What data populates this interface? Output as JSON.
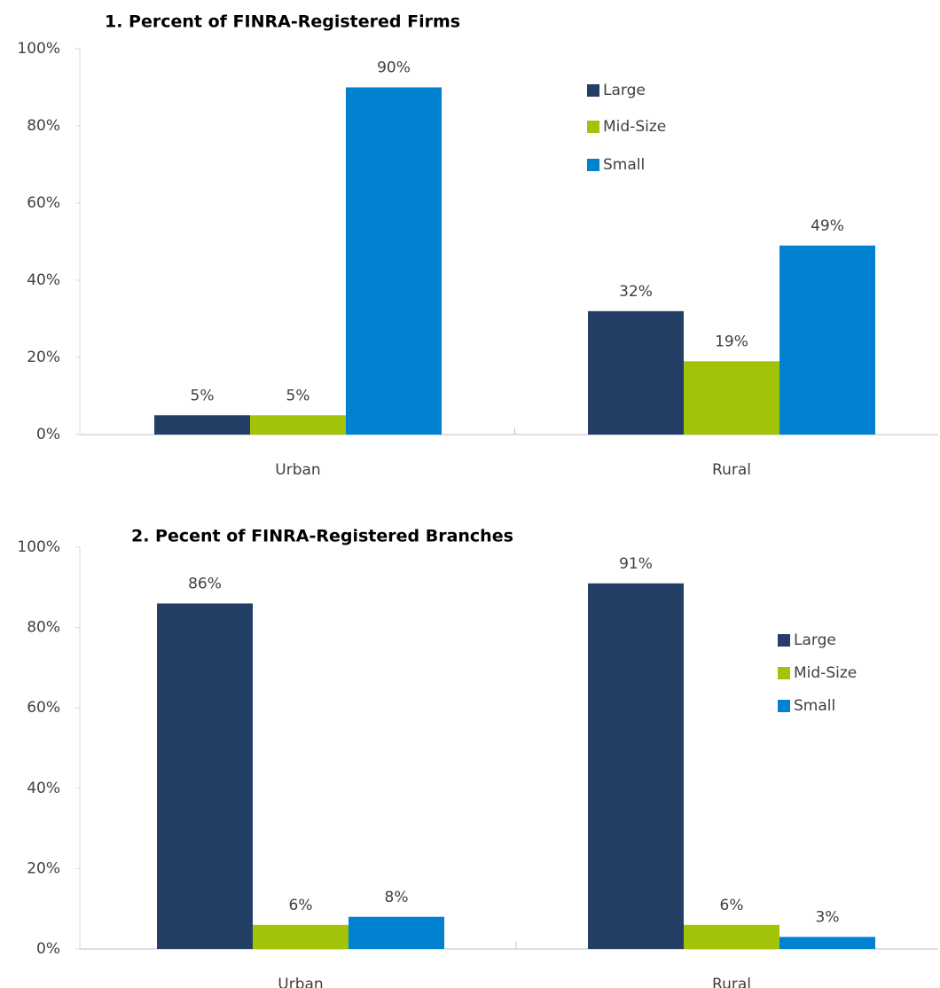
{
  "chart_data": [
    {
      "type": "bar",
      "title": "1. Percent of FINRA-Registered Firms",
      "categories": [
        "Urban",
        "Rural"
      ],
      "series": [
        {
          "name": "Large",
          "color": "#243f66",
          "values": [
            5,
            32
          ],
          "value_labels": [
            "5%",
            "32%"
          ]
        },
        {
          "name": "Mid-Size",
          "color": "#a2c408",
          "values": [
            5,
            19
          ],
          "value_labels": [
            "5%",
            "19%"
          ]
        },
        {
          "name": "Small",
          "color": "#0082d1",
          "values": [
            90,
            49
          ],
          "value_labels": [
            "90%",
            "49%"
          ]
        }
      ],
      "ylim": [
        0,
        100
      ],
      "yticks": [
        {
          "value": 0,
          "label": "0%"
        },
        {
          "value": 20,
          "label": "20%"
        },
        {
          "value": 40,
          "label": "40%"
        },
        {
          "value": 60,
          "label": "60%"
        },
        {
          "value": 80,
          "label": "80%"
        },
        {
          "value": 100,
          "label": "100%"
        }
      ],
      "grid": false
    },
    {
      "type": "bar",
      "title": "2. Pecent of FINRA-Registered Branches",
      "categories": [
        "Urban",
        "Rural"
      ],
      "series": [
        {
          "name": "Large",
          "color": "#243f66",
          "values": [
            86,
            91
          ],
          "value_labels": [
            "86%",
            "91%"
          ]
        },
        {
          "name": "Mid-Size",
          "color": "#a2c408",
          "values": [
            6,
            6
          ],
          "value_labels": [
            "6%",
            "6%"
          ]
        },
        {
          "name": "Small",
          "color": "#0082d1",
          "values": [
            8,
            3
          ],
          "value_labels": [
            "8%",
            "3%"
          ]
        }
      ],
      "ylim": [
        0,
        100
      ],
      "yticks": [
        {
          "value": 0,
          "label": "0%"
        },
        {
          "value": 20,
          "label": "20%"
        },
        {
          "value": 40,
          "label": "40%"
        },
        {
          "value": 60,
          "label": "60%"
        },
        {
          "value": 80,
          "label": "80%"
        },
        {
          "value": 100,
          "label": "100%"
        }
      ],
      "grid": false
    }
  ]
}
